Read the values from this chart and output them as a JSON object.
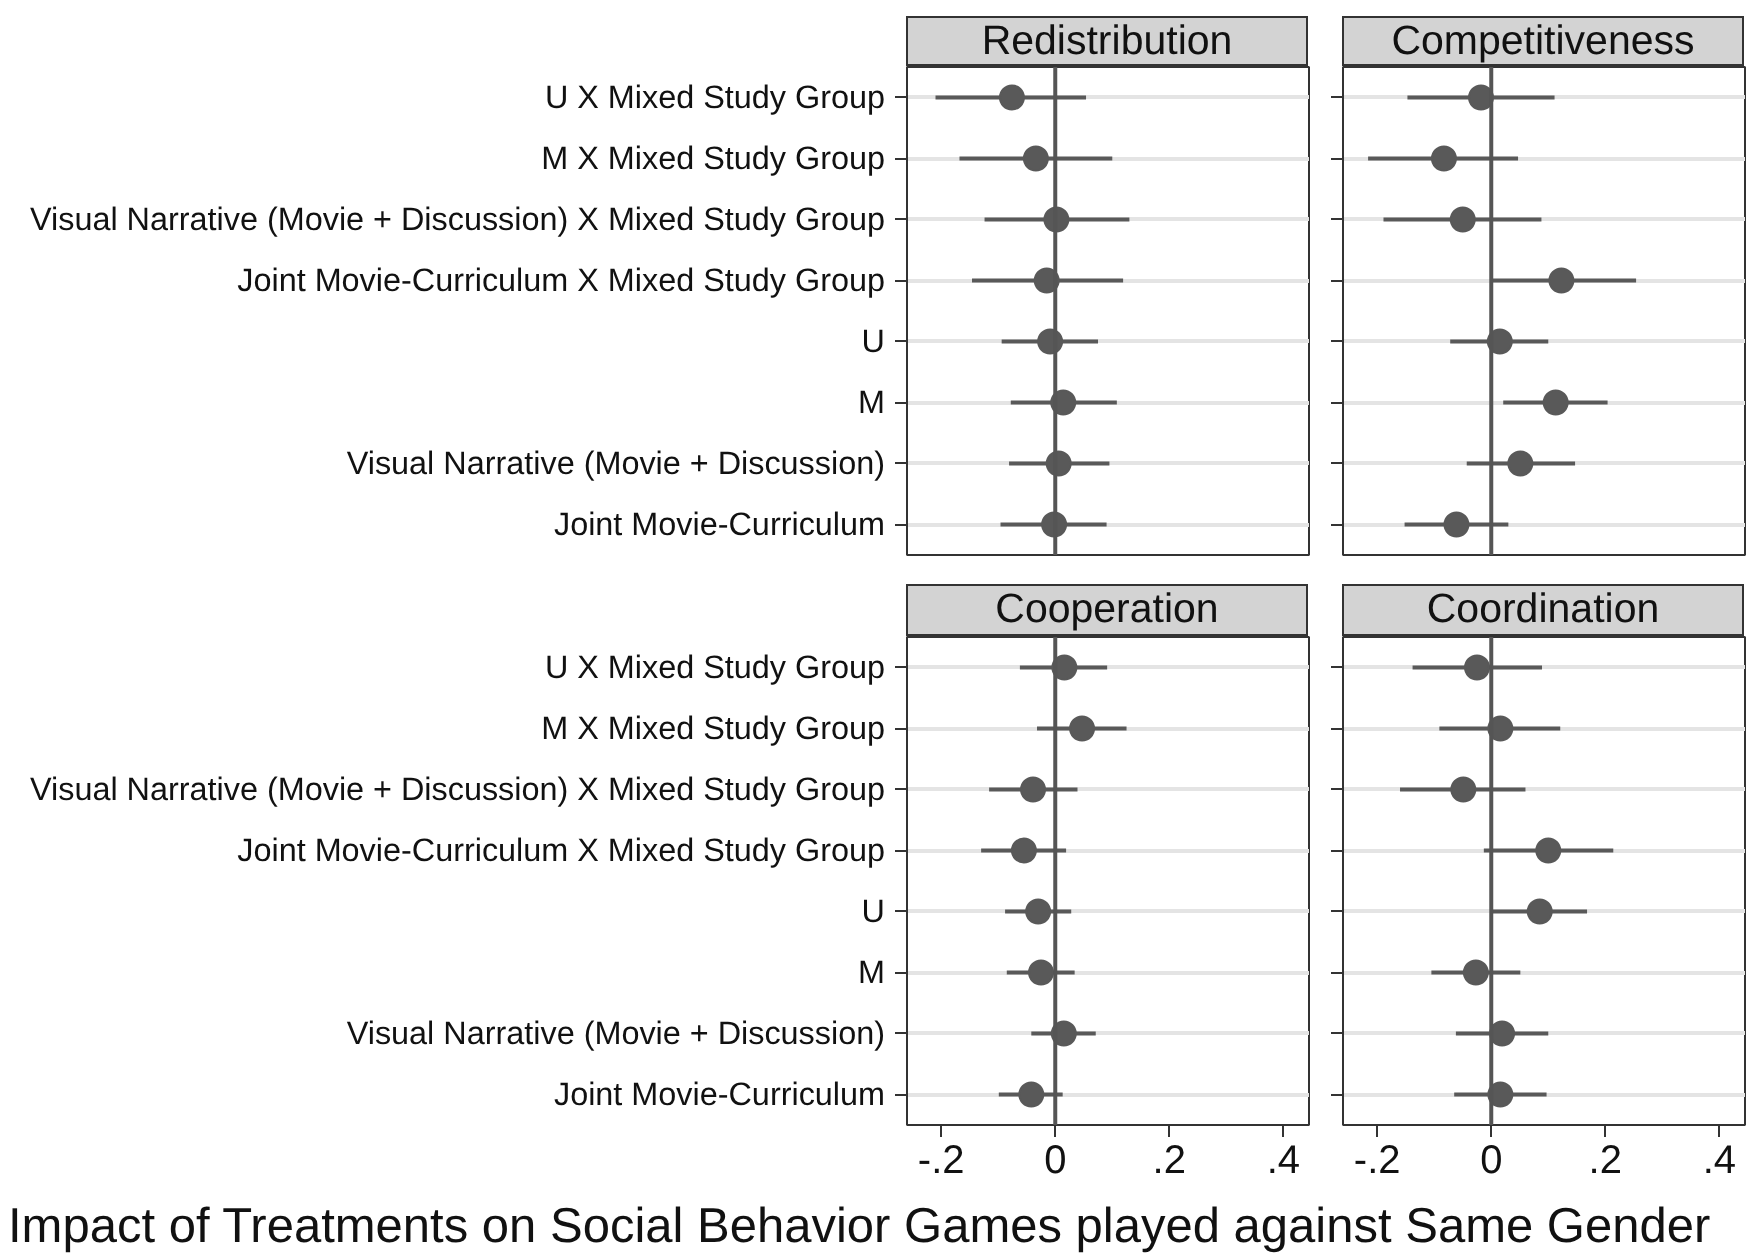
{
  "chart_data": [
    {
      "type": "scatter",
      "title": "Redistribution",
      "orientation": "horizontal",
      "color": "#595959",
      "marker": "circle",
      "grid": "y",
      "tick_labels": "y",
      "categories": [
        "U X Mixed Study Group",
        "M X Mixed Study Group",
        "Visual Narrative (Movie + Discussion) X Mixed Study Group",
        "Joint Movie-Curriculum X Mixed Study Group",
        "U",
        "M",
        "Visual Narrative (Movie + Discussion)",
        "Joint Movie-Curriculum"
      ],
      "values": [
        -0.076,
        -0.034,
        0.002,
        -0.015,
        -0.009,
        0.014,
        0.006,
        -0.002
      ],
      "errors": [
        [
          -0.21,
          0.054
        ],
        [
          -0.168,
          0.1
        ],
        [
          -0.124,
          0.13
        ],
        [
          -0.146,
          0.119
        ],
        [
          -0.094,
          0.075
        ],
        [
          -0.078,
          0.108
        ],
        [
          -0.081,
          0.095
        ],
        [
          -0.096,
          0.09
        ]
      ],
      "xlim": [
        -0.26,
        0.445
      ],
      "ref_lines": [
        {
          "axis": "x",
          "value": 0,
          "color": "#555555"
        }
      ]
    },
    {
      "type": "scatter",
      "title": "Competitiveness",
      "orientation": "horizontal",
      "color": "#595959",
      "marker": "circle",
      "grid": "y",
      "tick_labels": false,
      "categories": [
        null,
        null,
        null,
        null,
        null,
        null,
        null,
        null
      ],
      "values": [
        -0.018,
        -0.083,
        -0.05,
        0.123,
        0.015,
        0.113,
        0.051,
        -0.061
      ],
      "errors": [
        [
          -0.147,
          0.111
        ],
        [
          -0.216,
          0.047
        ],
        [
          -0.189,
          0.088
        ],
        [
          0.0,
          0.254
        ],
        [
          -0.072,
          0.1
        ],
        [
          0.021,
          0.204
        ],
        [
          -0.043,
          0.147
        ],
        [
          -0.152,
          0.03
        ]
      ],
      "xlim": [
        -0.26,
        0.445
      ],
      "ref_lines": [
        {
          "axis": "x",
          "value": 0,
          "color": "#555555"
        }
      ]
    },
    {
      "type": "scatter",
      "title": "Cooperation",
      "orientation": "horizontal",
      "color": "#595959",
      "marker": "circle",
      "grid": "y",
      "categories": [
        "U X Mixed Study Group",
        "M X Mixed Study Group",
        "Visual Narrative (Movie + Discussion) X Mixed Study Group",
        "Joint Movie-Curriculum X Mixed Study Group",
        "U",
        "M",
        "Visual Narrative (Movie + Discussion)",
        "Joint Movie-Curriculum"
      ],
      "values": [
        0.016,
        0.047,
        -0.039,
        -0.055,
        -0.03,
        -0.025,
        0.015,
        -0.042
      ],
      "errors": [
        [
          -0.062,
          0.091
        ],
        [
          -0.032,
          0.125
        ],
        [
          -0.116,
          0.039
        ],
        [
          -0.13,
          0.019
        ],
        [
          -0.088,
          0.028
        ],
        [
          -0.085,
          0.034
        ],
        [
          -0.042,
          0.071
        ],
        [
          -0.099,
          0.013
        ]
      ],
      "xlim": [
        -0.26,
        0.445
      ],
      "xticks": [
        {
          "value": -0.2,
          "label": "-.2"
        },
        0,
        {
          "value": 0.2,
          "label": ".2"
        },
        {
          "value": 0.4,
          "label": ".4"
        }
      ],
      "ref_lines": [
        {
          "axis": "x",
          "value": 0,
          "color": "#555555"
        }
      ],
      "annotations": [
        "Impact of Treatments on Social Behavior Games played against Same Gender"
      ]
    },
    {
      "type": "scatter",
      "title": "Coordination",
      "orientation": "horizontal",
      "color": "#595959",
      "marker": "circle",
      "grid": "y",
      "tick_labels": "x",
      "categories": [
        null,
        null,
        null,
        null,
        null,
        null,
        null,
        null
      ],
      "values": [
        -0.025,
        0.016,
        -0.049,
        0.1,
        0.085,
        -0.027,
        0.019,
        0.016
      ],
      "errors": [
        [
          -0.138,
          0.089
        ],
        [
          -0.091,
          0.121
        ],
        [
          -0.16,
          0.06
        ],
        [
          -0.013,
          0.214
        ],
        [
          0.002,
          0.168
        ],
        [
          -0.105,
          0.051
        ],
        [
          -0.062,
          0.1
        ],
        [
          -0.065,
          0.097
        ]
      ],
      "xlim": [
        -0.26,
        0.445
      ],
      "xticks": [
        {
          "value": -0.2,
          "label": "-.2"
        },
        0,
        {
          "value": 0.2,
          "label": ".2"
        },
        {
          "value": 0.4,
          "label": ".4"
        }
      ],
      "ref_lines": [
        {
          "axis": "x",
          "value": 0,
          "color": "#555555"
        }
      ]
    }
  ]
}
